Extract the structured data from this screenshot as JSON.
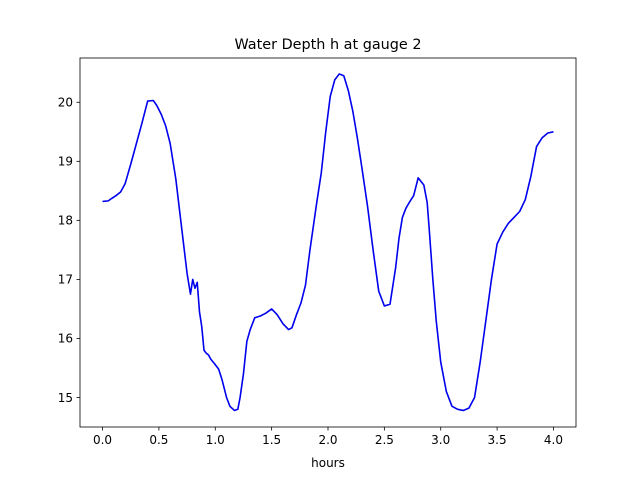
{
  "chart_data": {
    "type": "line",
    "title": "Water Depth h at gauge 2",
    "xlabel": "hours",
    "ylabel": "",
    "xlim": [
      -0.2,
      4.2
    ],
    "ylim": [
      14.5,
      20.75
    ],
    "xticks": [
      "0.0",
      "0.5",
      "1.0",
      "1.5",
      "2.0",
      "2.5",
      "3.0",
      "3.5",
      "4.0"
    ],
    "yticks": [
      "15",
      "16",
      "17",
      "18",
      "19",
      "20"
    ],
    "grid": false,
    "series": [
      {
        "color": "#0000ee",
        "x": [
          0.0,
          0.05,
          0.08,
          0.12,
          0.16,
          0.2,
          0.25,
          0.3,
          0.35,
          0.4,
          0.45,
          0.48,
          0.52,
          0.56,
          0.6,
          0.65,
          0.7,
          0.75,
          0.78,
          0.8,
          0.82,
          0.84,
          0.86,
          0.88,
          0.9,
          0.92,
          0.94,
          0.96,
          0.99,
          1.03,
          1.06,
          1.1,
          1.13,
          1.17,
          1.2,
          1.22,
          1.25,
          1.28,
          1.31,
          1.35,
          1.4,
          1.45,
          1.5,
          1.55,
          1.6,
          1.65,
          1.68,
          1.72,
          1.76,
          1.8,
          1.84,
          1.87,
          1.9,
          1.94,
          1.98,
          2.02,
          2.06,
          2.1,
          2.14,
          2.18,
          2.22,
          2.26,
          2.3,
          2.35,
          2.4,
          2.45,
          2.5,
          2.55,
          2.6,
          2.63,
          2.66,
          2.69,
          2.72,
          2.76,
          2.8,
          2.85,
          2.88,
          2.9,
          2.93,
          2.96,
          3.0,
          3.05,
          3.1,
          3.15,
          3.2,
          3.25,
          3.3,
          3.35,
          3.4,
          3.45,
          3.5,
          3.55,
          3.6,
          3.65,
          3.7,
          3.75,
          3.8,
          3.85,
          3.9,
          3.95,
          4.0
        ],
        "y": [
          18.32,
          18.33,
          18.37,
          18.42,
          18.48,
          18.62,
          18.95,
          19.3,
          19.65,
          20.02,
          20.03,
          19.95,
          19.8,
          19.6,
          19.3,
          18.7,
          17.9,
          17.1,
          16.75,
          17.0,
          16.85,
          16.95,
          16.45,
          16.2,
          15.8,
          15.75,
          15.72,
          15.65,
          15.58,
          15.48,
          15.3,
          15.0,
          14.85,
          14.78,
          14.8,
          15.0,
          15.4,
          15.95,
          16.15,
          16.35,
          16.38,
          16.43,
          16.5,
          16.4,
          16.25,
          16.15,
          16.18,
          16.4,
          16.6,
          16.9,
          17.5,
          17.9,
          18.3,
          18.8,
          19.5,
          20.1,
          20.38,
          20.48,
          20.45,
          20.2,
          19.85,
          19.4,
          18.9,
          18.25,
          17.5,
          16.8,
          16.55,
          16.58,
          17.2,
          17.7,
          18.05,
          18.2,
          18.3,
          18.42,
          18.72,
          18.6,
          18.3,
          17.8,
          17.0,
          16.3,
          15.6,
          15.1,
          14.85,
          14.8,
          14.78,
          14.82,
          15.0,
          15.6,
          16.3,
          17.0,
          17.6,
          17.8,
          17.95,
          18.05,
          18.15,
          18.35,
          18.75,
          19.25,
          19.4,
          19.48,
          19.5
        ]
      }
    ]
  }
}
